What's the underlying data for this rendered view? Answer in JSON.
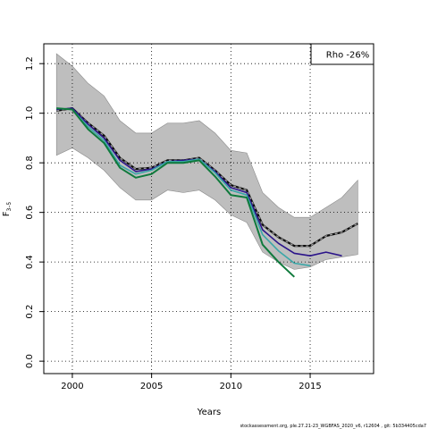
{
  "chart_data": {
    "type": "line",
    "xlabel": "Years",
    "ylabel": "F",
    "ylabel_sub": "3–5",
    "xlim": [
      1998.2,
      2019.0
    ],
    "ylim": [
      -0.05,
      1.28
    ],
    "x_ticks": [
      2000,
      2005,
      2010,
      2015
    ],
    "y_ticks": [
      0.0,
      0.2,
      0.4,
      0.6,
      0.8,
      1.0,
      1.2
    ],
    "x_tick_labels": [
      "2000",
      "2005",
      "2010",
      "2015"
    ],
    "y_tick_labels": [
      "0.0",
      "0.2",
      "0.4",
      "0.6",
      "0.8",
      "1.0",
      "1.2"
    ],
    "grid": true,
    "legend_position": "top-right",
    "legend_text": "Rho -26%",
    "confidence_band": {
      "color": "#bebebe",
      "x": [
        1999,
        2000,
        2001,
        2002,
        2003,
        2004,
        2005,
        2006,
        2007,
        2008,
        2009,
        2010,
        2011,
        2012,
        2013,
        2014,
        2015,
        2016,
        2017,
        2018
      ],
      "upper": [
        1.24,
        1.19,
        1.12,
        1.07,
        0.97,
        0.92,
        0.92,
        0.96,
        0.96,
        0.97,
        0.92,
        0.85,
        0.84,
        0.68,
        0.62,
        0.58,
        0.58,
        0.62,
        0.66,
        0.73
      ],
      "lower": [
        0.83,
        0.86,
        0.82,
        0.77,
        0.7,
        0.65,
        0.65,
        0.69,
        0.68,
        0.69,
        0.65,
        0.59,
        0.56,
        0.44,
        0.4,
        0.37,
        0.38,
        0.41,
        0.42,
        0.43
      ]
    },
    "series": [
      {
        "color": "#0a0a0a",
        "dashed": true,
        "dash_color": "#9a9a9a",
        "width": 2.2,
        "x": [
          1999,
          2000,
          2001,
          2002,
          2003,
          2004,
          2005,
          2006,
          2007,
          2008,
          2009,
          2010,
          2011,
          2012,
          2013,
          2014,
          2015,
          2016,
          2017,
          2018
        ],
        "values": [
          1.01,
          1.02,
          0.96,
          0.91,
          0.82,
          0.775,
          0.78,
          0.81,
          0.81,
          0.82,
          0.77,
          0.71,
          0.69,
          0.55,
          0.5,
          0.465,
          0.465,
          0.505,
          0.52,
          0.555
        ]
      },
      {
        "color": "#2b148a",
        "width": 1.6,
        "x": [
          1999,
          2000,
          2001,
          2002,
          2003,
          2004,
          2005,
          2006,
          2007,
          2008,
          2009,
          2010,
          2011,
          2012,
          2013,
          2014,
          2015,
          2016,
          2017
        ],
        "values": [
          1.015,
          1.02,
          0.955,
          0.9,
          0.81,
          0.765,
          0.775,
          0.805,
          0.81,
          0.815,
          0.765,
          0.7,
          0.68,
          0.53,
          0.475,
          0.435,
          0.425,
          0.44,
          0.425
        ]
      },
      {
        "color": "#3aa7a8",
        "width": 1.6,
        "x": [
          1999,
          2000,
          2001,
          2002,
          2003,
          2004,
          2005,
          2006,
          2007,
          2008,
          2009,
          2010,
          2011,
          2012,
          2013,
          2014,
          2015
        ],
        "values": [
          1.02,
          1.015,
          0.945,
          0.89,
          0.79,
          0.755,
          0.77,
          0.805,
          0.805,
          0.815,
          0.76,
          0.69,
          0.67,
          0.51,
          0.445,
          0.395,
          0.385
        ]
      },
      {
        "color": "#0f7a3c",
        "width": 2.0,
        "x": [
          1999,
          2000,
          2001,
          2002,
          2003,
          2004,
          2005,
          2006,
          2007,
          2008,
          2009,
          2010,
          2011,
          2012,
          2013,
          2014
        ],
        "values": [
          1.02,
          1.015,
          0.935,
          0.88,
          0.78,
          0.74,
          0.755,
          0.8,
          0.8,
          0.81,
          0.745,
          0.67,
          0.66,
          0.47,
          0.4,
          0.34
        ]
      }
    ]
  },
  "footer": "stockassessment.org,  ple.27.21-23_WGBFAS_2020_v6,  r12604 ,  git: 5b334405cda7"
}
